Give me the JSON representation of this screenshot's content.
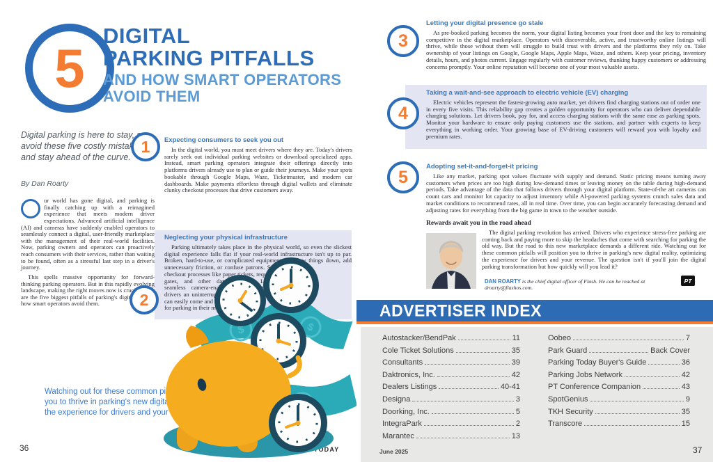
{
  "title": {
    "badge_number": "5",
    "line1": "DIGITAL",
    "line2": "PARKING PITFALLS",
    "sub1": "AND HOW SMART OPERATORS",
    "sub2": "AVOID THEM"
  },
  "left_page": {
    "intro": "Digital parking is here to stay, so avoid these five costly mistakes and stay ahead of the curve.",
    "byline": "By Dan Roarty",
    "para1_dropcap": "O",
    "para1_rest": "ur world has gone digital, and parking is finally catching up with a reimagined experience that meets modern driver expectations. Advanced artificial intelligence (AI) and cameras have suddenly enabled operators to seamlessly connect a digital, user-friendly marketplace with the management of their real-world facilities. Now, parking owners and operators can proactively reach consumers with their services, rather than waiting to be found, often as a stressful last step in a driver's journey.",
    "para2": "This spells massive opportunity for forward-thinking parking operators. But in this rapidly evolving landscape, making the right moves now is crucial. Here are the five biggest pitfalls of parking's digital era and how smart operators avoid them.",
    "pull_quote": "Watching out for these common pitfalls will position you to thrive in parking's new digital reality, optimizing the experience for drivers and your revenue.",
    "page_number": "36",
    "footer_title": "PARKING TODAY"
  },
  "pitfalls": [
    {
      "num": "1",
      "heading": "Expecting consumers to seek you out",
      "body": "In the digital world, you must meet drivers where they are. Today's drivers rarely seek out individual parking websites or download specialized apps. Instead, smart parking operators integrate their offerings directly into platforms drivers already use to plan or guide their journeys. Make your spots bookable through Google Maps, Waze, Ticketmaster, and modern car dashboards. Make payments effortless through digital wallets and eliminate clunky checkout processes that drive customers away."
    },
    {
      "num": "2",
      "heading": "Neglecting your physical infrastructure",
      "body": "Parking ultimately takes place in the physical world, so even the slickest digital experience falls flat if your real-world infrastructure isn't up to par. Broken, hard-to-use, or complicated equipment can slow things down, add unnecessary friction, or confuse patrons. So can physical checkout processes like paper tickets, requiring payment at gates, and other dated options. Leverage seamless camera-enabled solutions to give drivers an uninterrupted experience where they can easily come and go while paying for parking in their mobile apps."
    },
    {
      "num": "3",
      "heading": "Letting your digital presence go stale",
      "body": "As pre-booked parking becomes the norm, your digital listing becomes your front door and the key to remaining competitive in the digital marketplace. Operators with discoverable, active, and trustworthy online listings will thrive, while those without them will struggle to build trust with drivers and the platforms they rely on. Take ownership of your listings on Google, Google Maps, Apple Maps, Waze, and others. Keep your pricing, inventory details, hours, and photos current. Engage regularly with customer reviews, thanking happy customers or addressing concerns promptly. Your online reputation will become one of your most valuable assets."
    },
    {
      "num": "4",
      "heading": "Taking a wait-and-see approach to electric vehicle (EV) charging",
      "body": "Electric vehicles represent the fastest-growing auto market, yet drivers find charging stations out of order one in every five visits. This reliability gap creates a golden opportunity for operators who can deliver dependable charging solutions. Let drivers book, pay for, and access charging stations with the same ease as parking spots. Monitor your hardware to ensure only paying customers use the stations, and partner with experts to keep everything in working order. Your growing base of EV-driving customers will reward you with loyalty and premium rates."
    },
    {
      "num": "5",
      "heading": "Adopting set-it-and-forget-it pricing",
      "body": "Like any market, parking spot values fluctuate with supply and demand. Static pricing means turning away customers when prices are too high during low-demand times or leaving money on the table during high-demand periods. Take advantage of the data that follows drivers through your digital platform. State-of-the art cameras can count cars and monitor lot capacity to adjust inventory while AI-powered parking systems crunch sales data and market conditions to recommend rates, all in real time. Over time, you can begin accurately forecasting demand and adjusting rates for everything from the big game in town to the weather outside."
    }
  ],
  "rewards": {
    "heading": "Rewards await you in the road ahead",
    "body": "The digital parking revolution has arrived. Drivers who experience stress-free parking are coming back and paying more to skip the headaches that come with searching for parking the old way. But the road to this new marketplace demands a different ride. Watching out for these common pitfalls will position you to thrive in parking's new digital reality, optimizing the experience for drivers and your revenue. The question isn't if you'll join the digital parking transformation but how quickly will you lead it?"
  },
  "author": {
    "name": "DAN ROARTY",
    "bio": " is the chief digital officer of Flash. He can be reached at droarty@flashos.com.",
    "logo": "PT"
  },
  "advertiser_index": {
    "title": "ADVERTISER INDEX",
    "left": [
      {
        "name": "Autostacker/BendPak",
        "page": "11"
      },
      {
        "name": "Cole Ticket Solutions",
        "page": "35"
      },
      {
        "name": "Consultants",
        "page": "39"
      },
      {
        "name": "Daktronics, Inc.",
        "page": "42"
      },
      {
        "name": "Dealers Listings",
        "page": "40-41"
      },
      {
        "name": "Designa",
        "page": "3"
      },
      {
        "name": "Doorking, Inc.",
        "page": "5"
      },
      {
        "name": "IntegraPark",
        "page": "2"
      },
      {
        "name": "Marantec",
        "page": "13"
      }
    ],
    "right": [
      {
        "name": "Oobeo",
        "page": "7"
      },
      {
        "name": "Park Guard",
        "page": "Back Cover"
      },
      {
        "name": "Parking Today Buyer's Guide",
        "page": "36"
      },
      {
        "name": "Parking Jobs Network",
        "page": "42"
      },
      {
        "name": "PT Conference Companion",
        "page": "43"
      },
      {
        "name": "SpotGenius",
        "page": "9"
      },
      {
        "name": "TKH Security",
        "page": "35"
      },
      {
        "name": "Transcore",
        "page": "15"
      }
    ]
  },
  "right_page": {
    "footer_date": "June 2025",
    "page_number": "37"
  },
  "colors": {
    "brand_blue": "#2d6db8",
    "light_blue": "#5b9bd5",
    "accent_orange": "#f47b32",
    "heading_blue": "#3478c2",
    "lavender_panel": "#e4e5f2",
    "index_bar_blue": "#2d6cb4",
    "index_panel_gray": "#e8e8e7",
    "illustration_teal": "#2baab8",
    "clock_navy": "#1e4a5f",
    "piggy_yellow": "#f6ac1f"
  }
}
